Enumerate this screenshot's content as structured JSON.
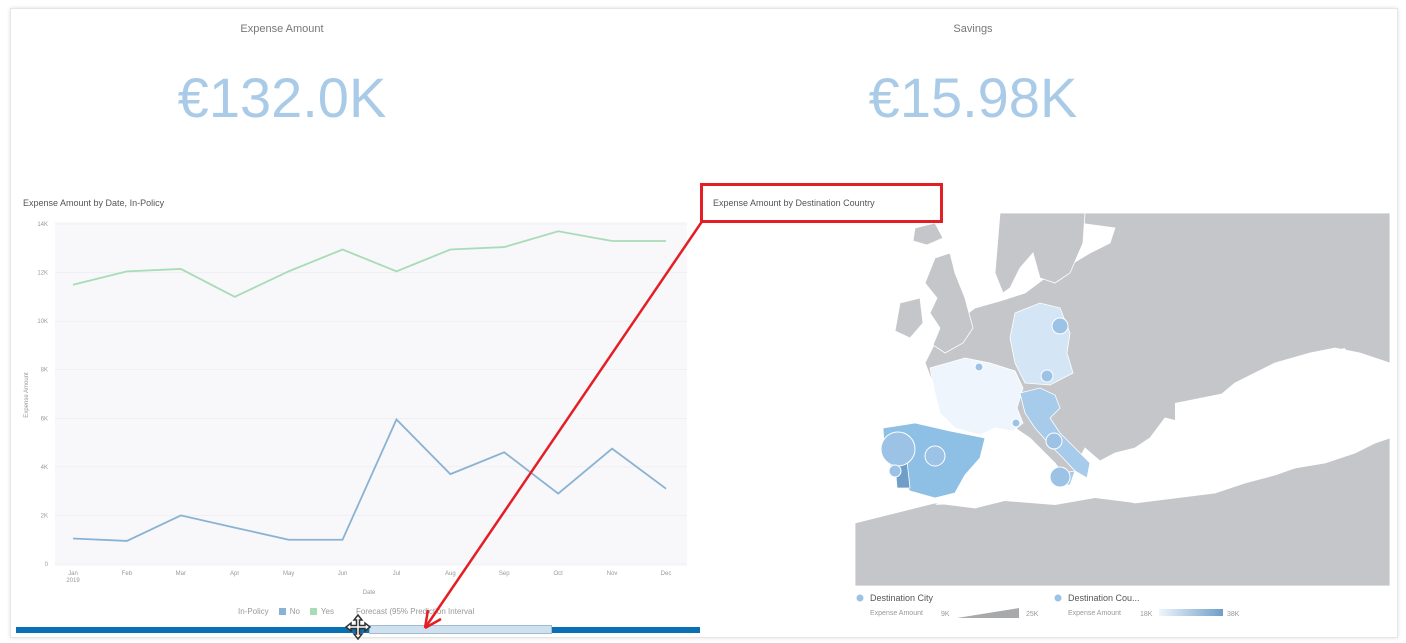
{
  "kpis": [
    {
      "title": "Expense Amount",
      "value": "€132.0K"
    },
    {
      "title": "Savings",
      "value": "€15.98K"
    }
  ],
  "line_chart": {
    "title": "Expense Amount by Date, In-Policy",
    "y_axis_label": "Expense Amount",
    "x_axis_label": "Date",
    "year_label": "2019",
    "legend_title": "In-Policy",
    "legend_items": [
      "No",
      "Yes"
    ],
    "forecast_label": "Forecast (95% Prediction Interval"
  },
  "chart_data": {
    "type": "line",
    "categories": [
      "Jan",
      "Feb",
      "Mar",
      "Apr",
      "May",
      "Jun",
      "Jul",
      "Aug",
      "Sep",
      "Oct",
      "Nov",
      "Dec"
    ],
    "series": [
      {
        "name": "No",
        "values": [
          1050,
          950,
          2000,
          1500,
          1000,
          1000,
          5950,
          3700,
          4600,
          2900,
          4750,
          3100
        ]
      },
      {
        "name": "Yes",
        "values": [
          11500,
          12050,
          12150,
          11000,
          12050,
          12950,
          12050,
          12950,
          13050,
          13700,
          13300,
          13300
        ]
      }
    ],
    "ylim": [
      0,
      14000
    ],
    "y_ticks": [
      "0",
      "2K",
      "4K",
      "6K",
      "8K",
      "10K",
      "12K",
      "14K"
    ],
    "colors": {
      "No": "#8ab3d3",
      "Yes": "#a8dcb7"
    },
    "grid": true
  },
  "map": {
    "title": "Expense Amount by Destination Country",
    "legend": [
      {
        "label": "Destination City",
        "sub": "Expense Amount",
        "min": "9K",
        "max": "25K"
      },
      {
        "label": "Destination Cou...",
        "sub": "Expense Amount",
        "min": "18K",
        "max": "38K"
      }
    ]
  },
  "colors": {
    "kpi": "#a9cbe8",
    "highlight": "#e31e24",
    "scrollbar": "#0a70b4"
  }
}
